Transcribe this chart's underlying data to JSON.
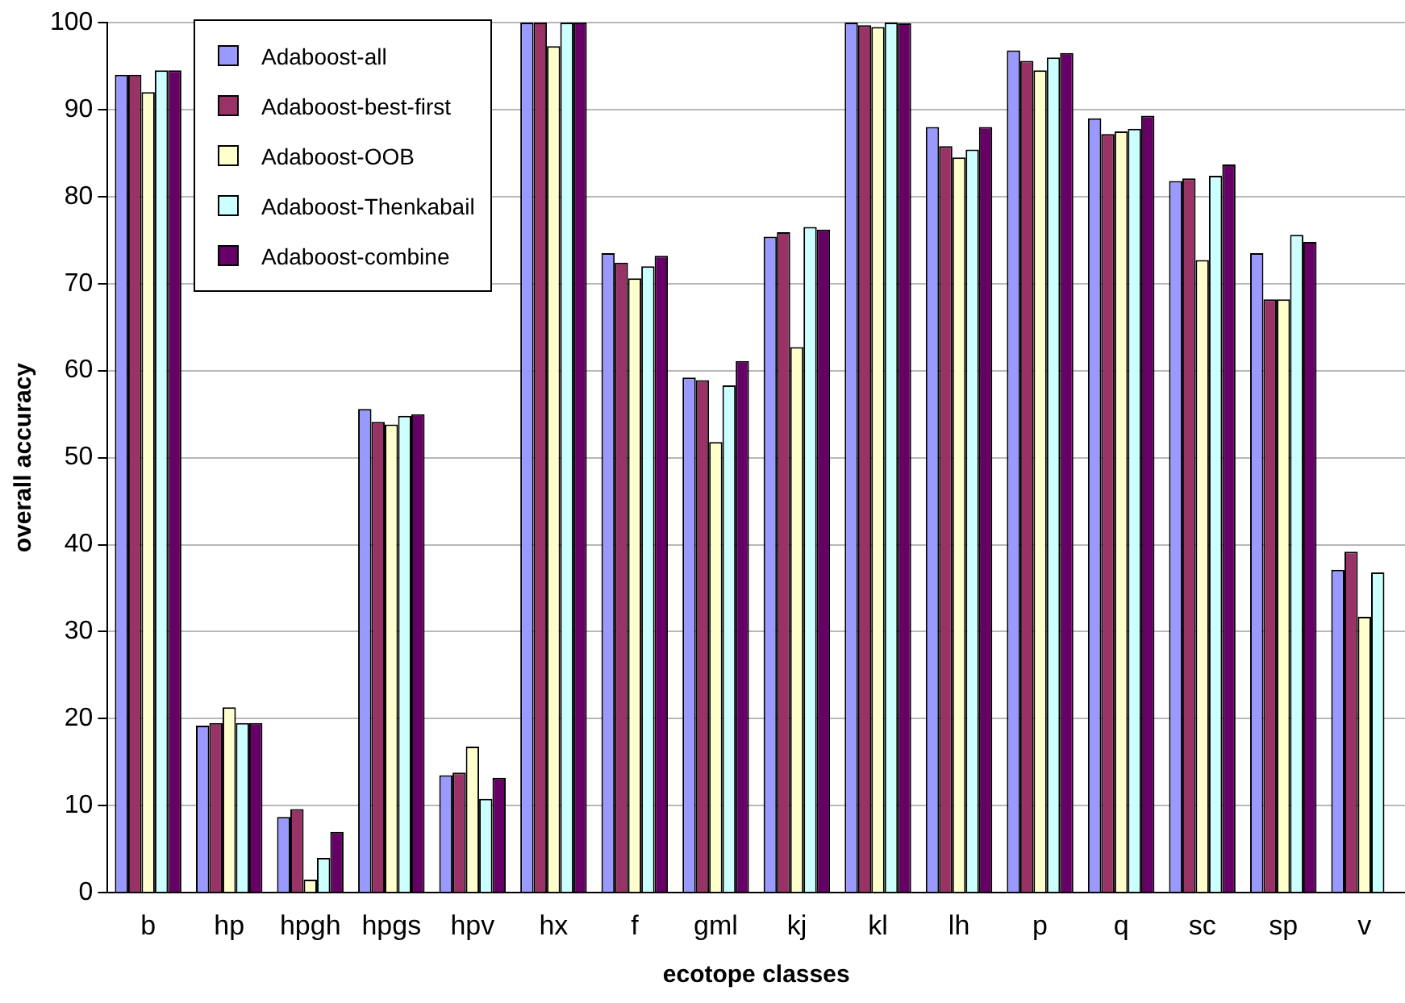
{
  "chart_data": {
    "type": "bar",
    "xlabel": "ecotope classes",
    "ylabel": "overall accuracy",
    "categories": [
      "b",
      "hp",
      "hpgh",
      "hpgs",
      "hpv",
      "hx",
      "f",
      "gml",
      "kj",
      "kl",
      "lh",
      "p",
      "q",
      "sc",
      "sp",
      "v"
    ],
    "series": [
      {
        "name": "Adaboost-all",
        "color": "#9999ff",
        "values": [
          94,
          19.2,
          8.7,
          55.6,
          13.5,
          100,
          73.5,
          59.2,
          75.4,
          100,
          88,
          96.8,
          89,
          81.8,
          73.5,
          37.1
        ]
      },
      {
        "name": "Adaboost-best-first",
        "color": "#993366",
        "values": [
          94,
          19.5,
          9.6,
          54.1,
          13.8,
          100,
          72.4,
          58.9,
          75.9,
          99.7,
          85.8,
          95.6,
          87.2,
          82.1,
          68.2,
          39.2
        ]
      },
      {
        "name": "Adaboost-OOB",
        "color": "#ffffcc",
        "values": [
          92,
          21.3,
          1.5,
          53.8,
          16.8,
          97.3,
          70.6,
          51.8,
          62.7,
          99.5,
          84.5,
          94.5,
          87.5,
          72.7,
          68.2,
          31.7
        ]
      },
      {
        "name": "Adaboost-Thenkabail",
        "color": "#ccffff",
        "values": [
          94.5,
          19.5,
          4,
          54.8,
          10.8,
          100,
          72,
          58.3,
          76.5,
          100,
          85.4,
          96,
          87.8,
          82.4,
          75.6,
          36.8
        ]
      },
      {
        "name": "Adaboost-combine",
        "color": "#660066",
        "values": [
          94.5,
          19.5,
          7,
          55,
          13.2,
          100,
          73.2,
          61.1,
          76.2,
          99.9,
          88,
          96.5,
          89.3,
          83.7,
          74.8,
          null
        ]
      }
    ],
    "ylim": [
      0,
      100
    ],
    "yticks": [
      0,
      10,
      20,
      30,
      40,
      50,
      60,
      70,
      80,
      90,
      100
    ],
    "grid": "y",
    "legend": "top left"
  }
}
